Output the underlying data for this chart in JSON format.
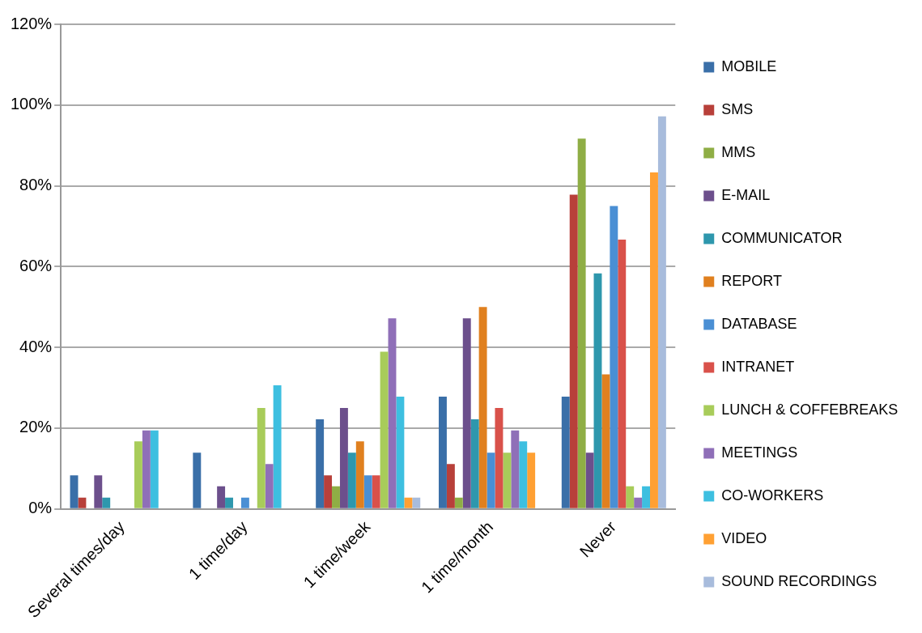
{
  "chart_data": {
    "type": "bar",
    "categories": [
      "Several times/day",
      "1 time/day",
      "1 time/week",
      "1 time/month",
      "Never"
    ],
    "series": [
      {
        "name": "MOBILE",
        "color": "#3a6fa8",
        "values": [
          8.3,
          13.9,
          22.2,
          27.8,
          27.8
        ]
      },
      {
        "name": "SMS",
        "color": "#b8403a",
        "values": [
          2.8,
          0,
          8.3,
          11.1,
          77.8
        ]
      },
      {
        "name": "MMS",
        "color": "#8fae45",
        "values": [
          0,
          0,
          5.6,
          2.8,
          91.7
        ]
      },
      {
        "name": "E-MAIL",
        "color": "#6c4f8c",
        "values": [
          8.3,
          5.6,
          25,
          47.2,
          13.9
        ]
      },
      {
        "name": "COMMUNICATOR",
        "color": "#2e97ad",
        "values": [
          2.8,
          2.8,
          13.9,
          22.2,
          58.3
        ]
      },
      {
        "name": "REPORT",
        "color": "#e0801f",
        "values": [
          0,
          0,
          16.7,
          50,
          33.3
        ]
      },
      {
        "name": "DATABASE",
        "color": "#4a8fd4",
        "values": [
          0,
          2.8,
          8.3,
          13.9,
          75
        ]
      },
      {
        "name": "INTRANET",
        "color": "#d9514a",
        "values": [
          0,
          0,
          8.3,
          25,
          66.7
        ]
      },
      {
        "name": "LUNCH & COFFEBREAKS",
        "color": "#a8cc5a",
        "values": [
          16.7,
          25,
          38.9,
          13.9,
          5.6
        ]
      },
      {
        "name": "MEETINGS",
        "color": "#8f6fb8",
        "values": [
          19.4,
          11.1,
          47.2,
          19.4,
          2.8
        ]
      },
      {
        "name": "CO-WORKERS",
        "color": "#3dbfe0",
        "values": [
          19.4,
          30.6,
          27.8,
          16.7,
          5.6
        ]
      },
      {
        "name": "VIDEO",
        "color": "#ffa033",
        "values": [
          0,
          0,
          2.8,
          13.9,
          83.3
        ]
      },
      {
        "name": "SOUND RECORDINGS",
        "color": "#a8bcdc",
        "values": [
          0,
          0,
          2.8,
          0,
          97.2
        ]
      }
    ],
    "ylim": [
      0,
      120
    ],
    "yticks": [
      {
        "value": 0,
        "label": "0%"
      },
      {
        "value": 20,
        "label": "20%"
      },
      {
        "value": 40,
        "label": "40%"
      },
      {
        "value": 60,
        "label": "60%"
      },
      {
        "value": 80,
        "label": "80%"
      },
      {
        "value": 100,
        "label": "100%"
      },
      {
        "value": 120,
        "label": "120%"
      }
    ],
    "grid": "y",
    "legend": "right"
  }
}
